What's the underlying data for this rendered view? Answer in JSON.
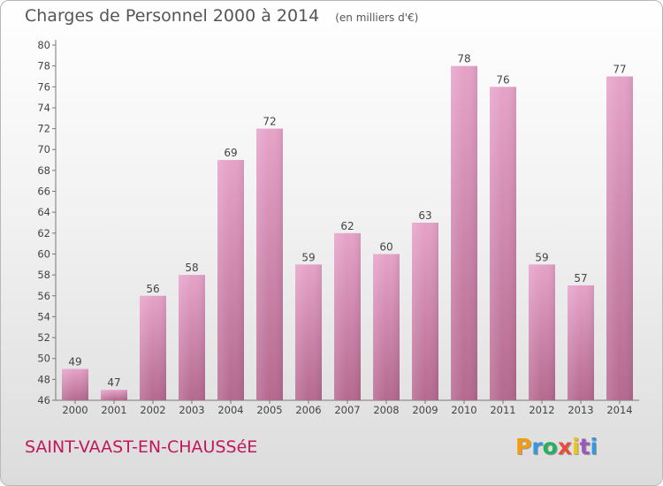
{
  "chart_data": {
    "type": "bar",
    "title": "Charges de Personnel 2000 à 2014",
    "subtitle": "(en milliers d'€)",
    "categories": [
      "2000",
      "2001",
      "2002",
      "2003",
      "2004",
      "2005",
      "2006",
      "2007",
      "2008",
      "2009",
      "2010",
      "2011",
      "2012",
      "2013",
      "2014"
    ],
    "values": [
      49,
      47,
      56,
      58,
      69,
      72,
      59,
      62,
      60,
      63,
      78,
      76,
      59,
      57,
      77
    ],
    "ylim": [
      46,
      80
    ],
    "yticks": [
      46,
      48,
      50,
      52,
      54,
      56,
      58,
      60,
      62,
      64,
      66,
      68,
      70,
      72,
      74,
      76,
      78,
      80
    ],
    "grid": false,
    "bar_color": "#e6a3c9",
    "bar_color_dark": "#b5698f"
  },
  "footer": {
    "commune": "SAINT-VAAST-EN-CHAUSSéE",
    "logo_letters": [
      "P",
      "r",
      "o",
      "x",
      "i",
      "t",
      "i"
    ],
    "logo_colors": [
      "#f39c12",
      "#3498db",
      "#27ae60",
      "#e74c3c",
      "#f1c40f",
      "#9b59b6",
      "#3498db"
    ]
  }
}
